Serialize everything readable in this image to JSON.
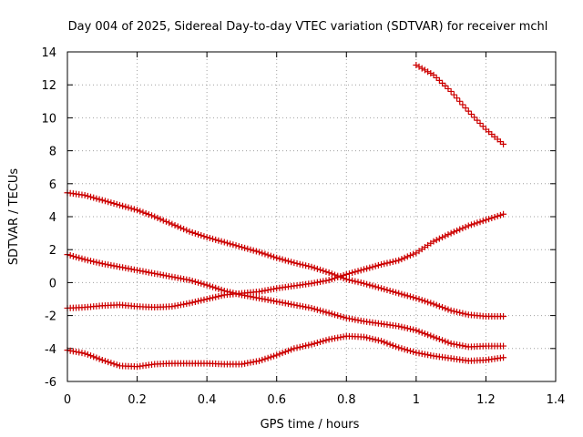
{
  "chart_data": {
    "type": "scatter",
    "title": "Day 004 of 2025, Sidereal Day-to-day VTEC variation (SDTVAR) for receiver mchl",
    "xlabel": "GPS time / hours",
    "ylabel": "SDTVAR / TECUs",
    "xlim": [
      0,
      1.4
    ],
    "ylim": [
      -6,
      14
    ],
    "xticks": [
      0,
      0.2,
      0.4,
      0.6,
      0.8,
      1,
      1.2,
      1.4
    ],
    "xtick_labels": [
      "0",
      "0.2",
      "0.4",
      "0.6",
      "0.8",
      "1",
      "1.2",
      "1.4"
    ],
    "yticks": [
      -6,
      -4,
      -2,
      0,
      2,
      4,
      6,
      8,
      10,
      12,
      14
    ],
    "ytick_labels": [
      "-6",
      "-4",
      "-2",
      "0",
      "2",
      "4",
      "6",
      "8",
      "10",
      "12",
      "14"
    ],
    "grid": true,
    "marker": "plus",
    "marker_color": "#cc0000",
    "series": [
      {
        "name": "trace-a",
        "x_start": 0,
        "x_end": 1.25,
        "knots": [
          [
            0,
            5.45
          ],
          [
            0.05,
            5.3
          ],
          [
            0.1,
            5.0
          ],
          [
            0.15,
            4.7
          ],
          [
            0.2,
            4.4
          ],
          [
            0.25,
            4.0
          ],
          [
            0.3,
            3.55
          ],
          [
            0.35,
            3.1
          ],
          [
            0.4,
            2.75
          ],
          [
            0.45,
            2.45
          ],
          [
            0.5,
            2.15
          ],
          [
            0.55,
            1.85
          ],
          [
            0.6,
            1.5
          ],
          [
            0.65,
            1.2
          ],
          [
            0.7,
            0.95
          ],
          [
            0.75,
            0.6
          ],
          [
            0.8,
            0.2
          ],
          [
            0.85,
            -0.05
          ],
          [
            0.9,
            -0.35
          ],
          [
            0.95,
            -0.65
          ],
          [
            1.0,
            -0.95
          ],
          [
            1.05,
            -1.3
          ],
          [
            1.1,
            -1.7
          ],
          [
            1.15,
            -1.95
          ],
          [
            1.2,
            -2.05
          ],
          [
            1.25,
            -2.05
          ]
        ]
      },
      {
        "name": "trace-b",
        "x_start": 0,
        "x_end": 1.25,
        "knots": [
          [
            0,
            1.7
          ],
          [
            0.05,
            1.4
          ],
          [
            0.1,
            1.15
          ],
          [
            0.15,
            0.95
          ],
          [
            0.2,
            0.75
          ],
          [
            0.25,
            0.55
          ],
          [
            0.3,
            0.35
          ],
          [
            0.35,
            0.15
          ],
          [
            0.4,
            -0.15
          ],
          [
            0.45,
            -0.5
          ],
          [
            0.5,
            -0.75
          ],
          [
            0.55,
            -0.95
          ],
          [
            0.6,
            -1.15
          ],
          [
            0.65,
            -1.35
          ],
          [
            0.7,
            -1.55
          ],
          [
            0.75,
            -1.85
          ],
          [
            0.8,
            -2.15
          ],
          [
            0.85,
            -2.35
          ],
          [
            0.9,
            -2.5
          ],
          [
            0.95,
            -2.65
          ],
          [
            1.0,
            -2.9
          ],
          [
            1.05,
            -3.3
          ],
          [
            1.1,
            -3.7
          ],
          [
            1.15,
            -3.9
          ],
          [
            1.2,
            -3.85
          ],
          [
            1.25,
            -3.85
          ]
        ]
      },
      {
        "name": "trace-c",
        "x_start": 0,
        "x_end": 1.25,
        "knots": [
          [
            0,
            -1.55
          ],
          [
            0.05,
            -1.5
          ],
          [
            0.1,
            -1.4
          ],
          [
            0.15,
            -1.35
          ],
          [
            0.2,
            -1.45
          ],
          [
            0.25,
            -1.5
          ],
          [
            0.3,
            -1.45
          ],
          [
            0.35,
            -1.25
          ],
          [
            0.4,
            -1.0
          ],
          [
            0.45,
            -0.75
          ],
          [
            0.5,
            -0.65
          ],
          [
            0.55,
            -0.55
          ],
          [
            0.6,
            -0.35
          ],
          [
            0.65,
            -0.2
          ],
          [
            0.7,
            -0.05
          ],
          [
            0.75,
            0.15
          ],
          [
            0.8,
            0.5
          ],
          [
            0.85,
            0.8
          ],
          [
            0.9,
            1.1
          ],
          [
            0.95,
            1.35
          ],
          [
            1.0,
            1.8
          ],
          [
            1.05,
            2.5
          ],
          [
            1.1,
            3.0
          ],
          [
            1.15,
            3.45
          ],
          [
            1.2,
            3.8
          ],
          [
            1.25,
            4.15
          ]
        ]
      },
      {
        "name": "trace-d",
        "x_start": 0,
        "x_end": 1.25,
        "knots": [
          [
            0,
            -4.1
          ],
          [
            0.05,
            -4.3
          ],
          [
            0.1,
            -4.7
          ],
          [
            0.15,
            -5.05
          ],
          [
            0.2,
            -5.1
          ],
          [
            0.25,
            -4.95
          ],
          [
            0.3,
            -4.9
          ],
          [
            0.35,
            -4.9
          ],
          [
            0.4,
            -4.9
          ],
          [
            0.45,
            -4.95
          ],
          [
            0.5,
            -4.95
          ],
          [
            0.55,
            -4.75
          ],
          [
            0.6,
            -4.4
          ],
          [
            0.65,
            -4.0
          ],
          [
            0.7,
            -3.75
          ],
          [
            0.75,
            -3.45
          ],
          [
            0.8,
            -3.25
          ],
          [
            0.85,
            -3.3
          ],
          [
            0.9,
            -3.55
          ],
          [
            0.95,
            -3.95
          ],
          [
            1.0,
            -4.25
          ],
          [
            1.05,
            -4.45
          ],
          [
            1.1,
            -4.6
          ],
          [
            1.15,
            -4.75
          ],
          [
            1.2,
            -4.7
          ],
          [
            1.25,
            -4.55
          ]
        ]
      },
      {
        "name": "trace-e",
        "x_start": 1.0,
        "x_end": 1.25,
        "knots": [
          [
            1.0,
            13.2
          ],
          [
            1.05,
            12.6
          ],
          [
            1.1,
            11.6
          ],
          [
            1.15,
            10.4
          ],
          [
            1.2,
            9.3
          ],
          [
            1.25,
            8.4
          ]
        ]
      }
    ]
  }
}
